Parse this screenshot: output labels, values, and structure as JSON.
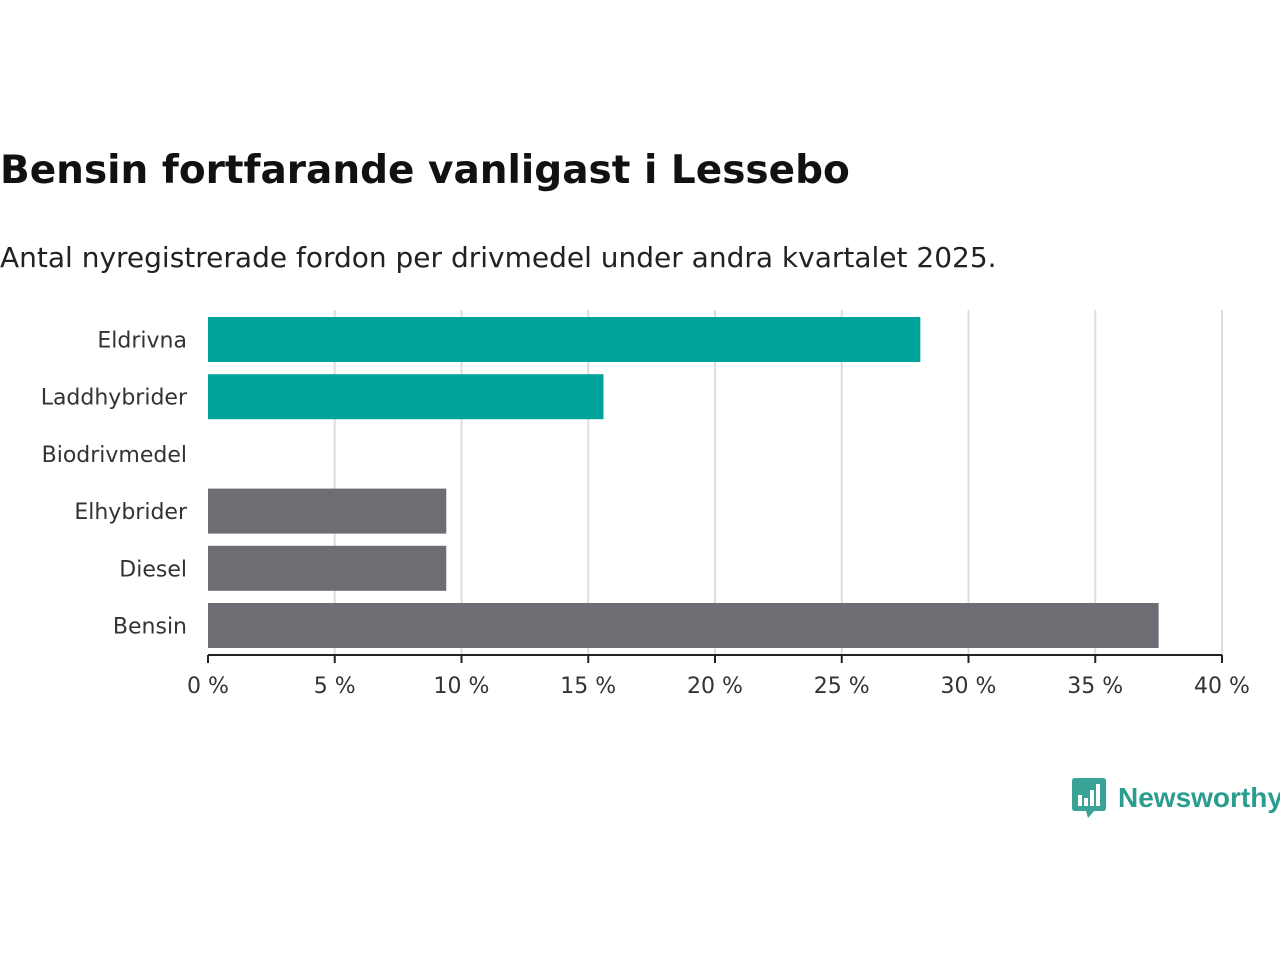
{
  "title": "Bensin fortfarande vanligast i Lessebo",
  "subtitle": "Antal nyregistrerade fordon per drivmedel under andra kvartalet 2025.",
  "brand": {
    "name": "Newsworthy",
    "icon": "newsworthy-logo-icon",
    "color": "#3aa398"
  },
  "chart_data": {
    "type": "bar",
    "orientation": "horizontal",
    "categories": [
      "Eldrivna",
      "Laddhybrider",
      "Biodrivmedel",
      "Elhybrider",
      "Diesel",
      "Bensin"
    ],
    "values": [
      28.1,
      15.6,
      0,
      9.4,
      9.4,
      37.5
    ],
    "colors": [
      "#00a39a",
      "#00a39a",
      "#00a39a",
      "#6e6d73",
      "#6e6d73",
      "#6e6d73"
    ],
    "xlim": [
      0,
      40
    ],
    "xticks": [
      0,
      5,
      10,
      15,
      20,
      25,
      30,
      35,
      40
    ],
    "tick_suffix": " %",
    "grid": true,
    "grid_color": "#dddddd",
    "axis_color": "#222222"
  }
}
